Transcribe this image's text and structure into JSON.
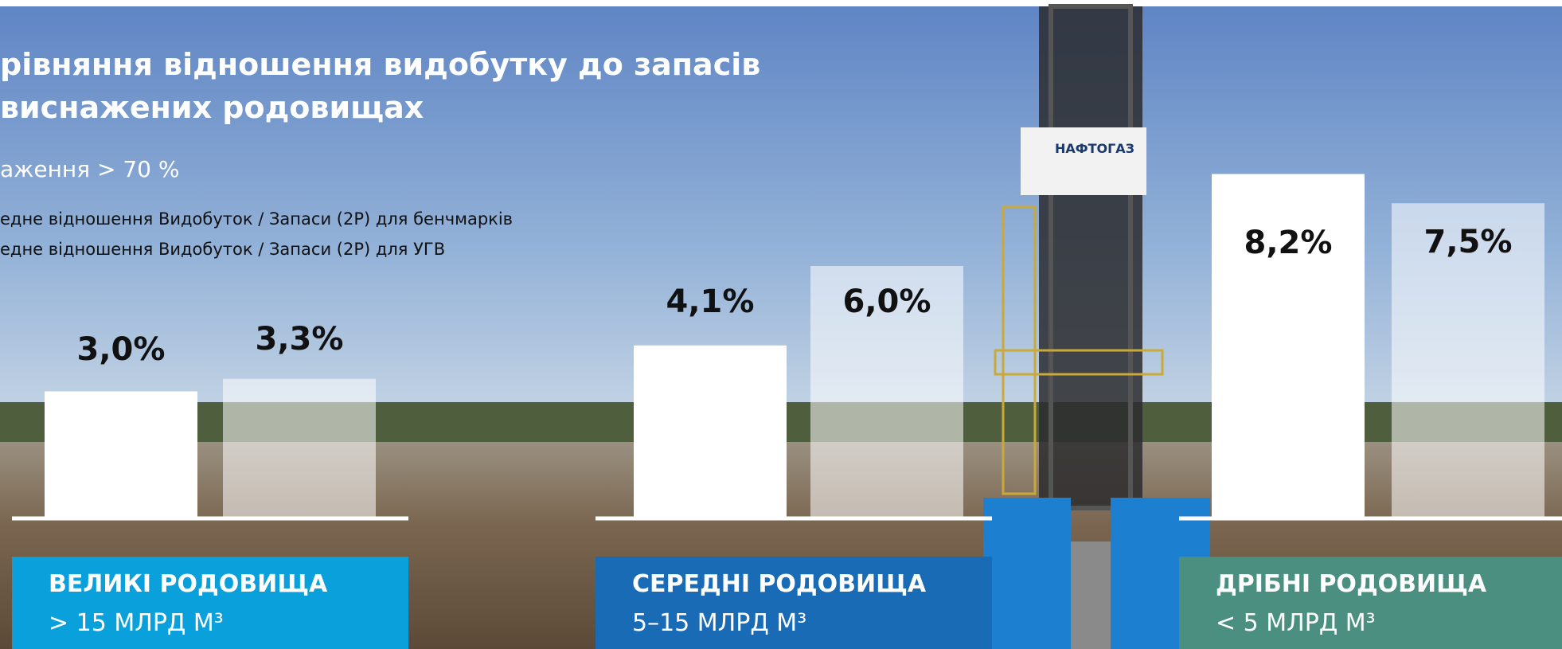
{
  "header": {
    "title_lines": [
      "рівняння відношення видобутку до запасів",
      "виснажених родовищах"
    ],
    "subtitle": "аження > 70 %",
    "sign": "НАФТОГАЗ"
  },
  "chart_data": {
    "type": "bar",
    "categories": [
      "ВЕЛИКІ РОДОВИЩА",
      "СЕРЕДНІ РОДОВИЩА",
      "ДРІБНІ РОДОВИЩА"
    ],
    "category_sublabels": [
      "> 15 МЛРД М³",
      "5–15 МЛРД М³",
      "< 5 МЛРД М³"
    ],
    "category_colors": [
      "#0aa0dc",
      "#1a6bb5",
      "#4a8f80"
    ],
    "series": [
      {
        "name": "едне відношення Видобуток / Запаси (2P) для бенчмарків",
        "color": "#ffffff",
        "opacity": 1,
        "values": [
          3.0,
          4.1,
          8.2
        ],
        "value_labels": [
          "3,0%",
          "4,1%",
          "8,2%"
        ]
      },
      {
        "name": "едне відношення Видобуток / Запаси (2P) для УГВ",
        "color": "#ffffff",
        "opacity": 0.55,
        "values": [
          3.3,
          6.0,
          7.5
        ],
        "value_labels": [
          "3,3%",
          "6,0%",
          "7,5%"
        ]
      }
    ]
  }
}
